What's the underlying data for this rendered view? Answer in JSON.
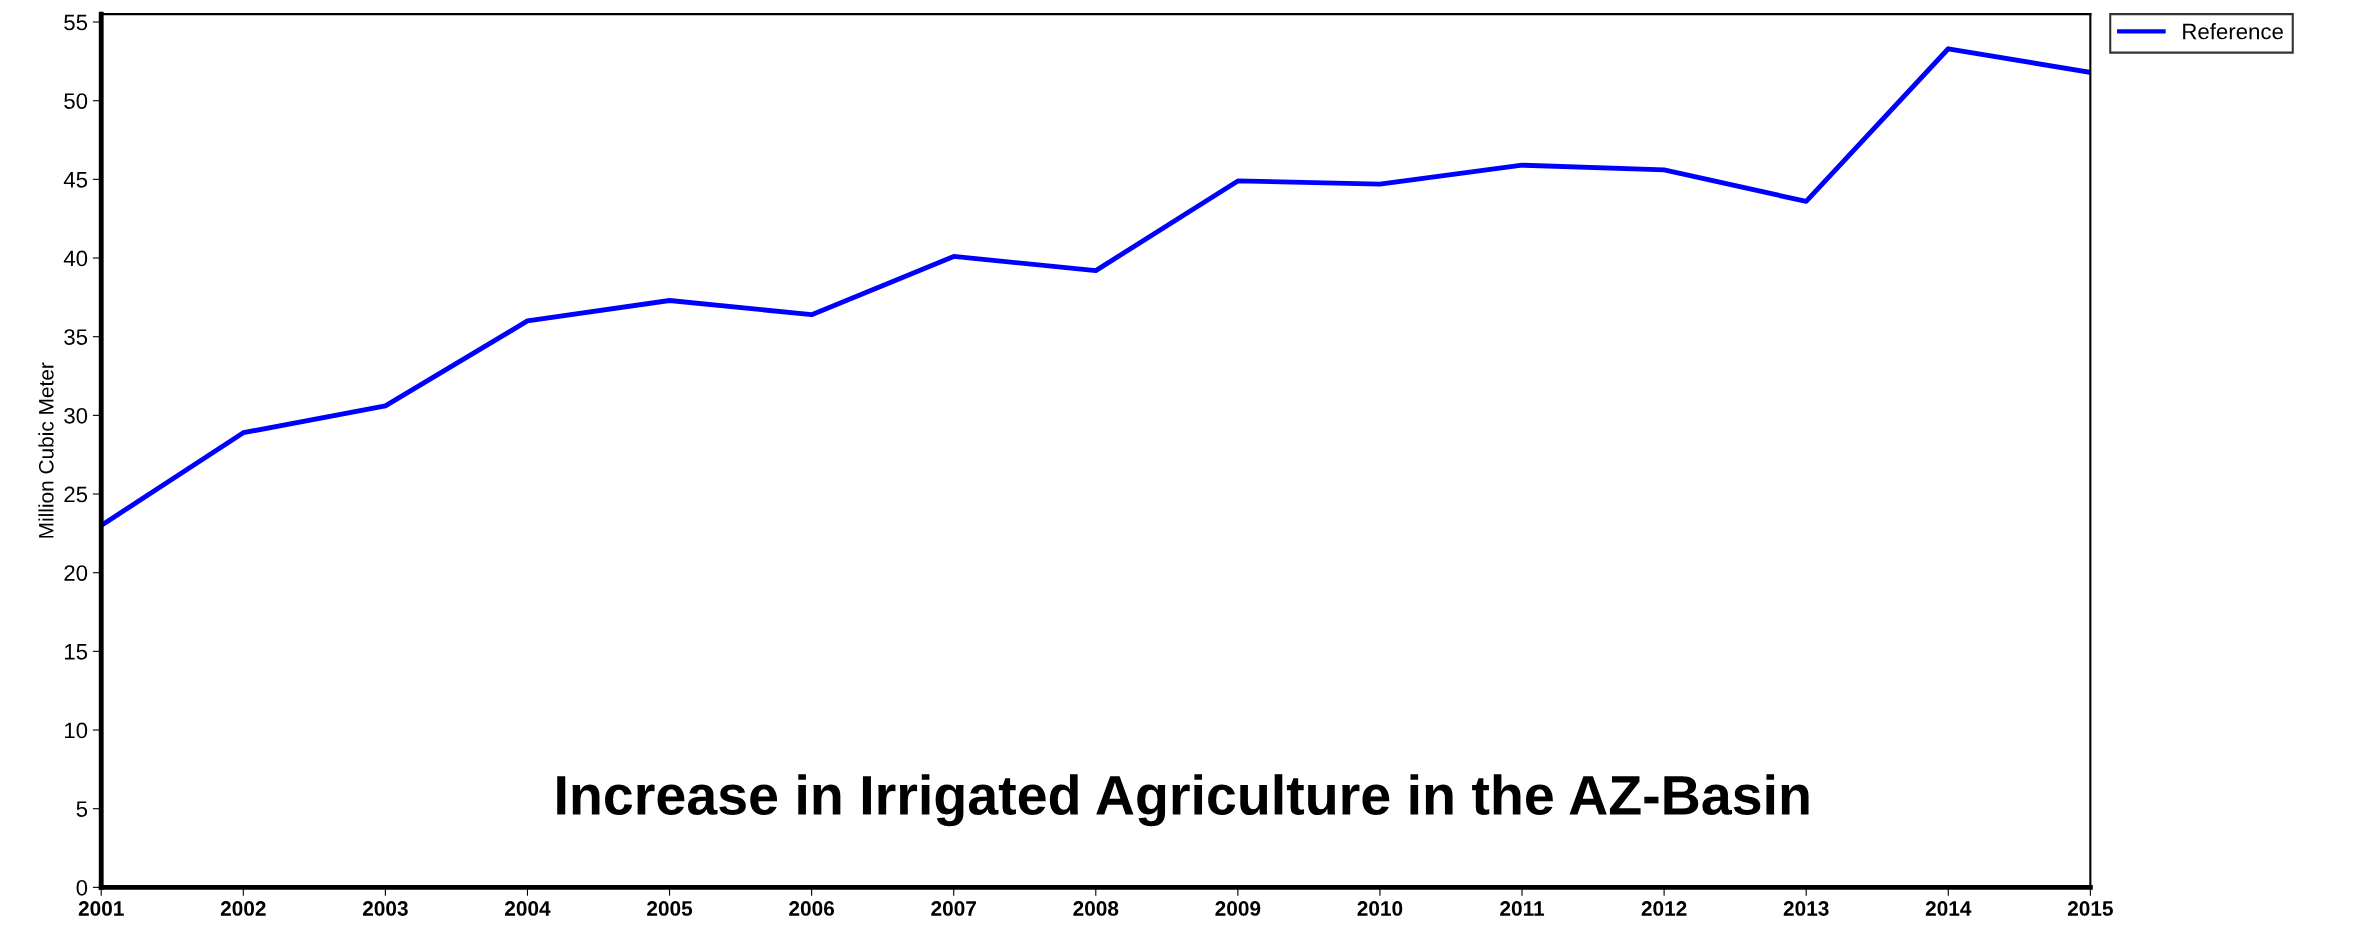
{
  "chart_data": {
    "type": "line",
    "title": "Increase in Irrigated Agriculture in the AZ-Basin",
    "ylabel": "Million Cubic Meter",
    "x": [
      2001,
      2002,
      2003,
      2004,
      2005,
      2006,
      2007,
      2008,
      2009,
      2010,
      2011,
      2012,
      2013,
      2014,
      2015
    ],
    "series": [
      {
        "name": "Reference",
        "color": "#0000ff",
        "values": [
          23.0,
          28.9,
          30.6,
          36.0,
          37.3,
          36.4,
          40.1,
          39.2,
          44.9,
          44.7,
          45.9,
          45.6,
          43.6,
          53.3,
          51.8
        ]
      }
    ],
    "xlim": [
      2001,
      2015
    ],
    "xticks": [
      2001,
      2002,
      2003,
      2004,
      2005,
      2006,
      2007,
      2008,
      2009,
      2010,
      2011,
      2012,
      2013,
      2014,
      2015
    ],
    "ylim": [
      0,
      55.5
    ],
    "yticks": [
      0,
      5,
      10,
      15,
      20,
      25,
      30,
      35,
      40,
      45,
      50,
      55
    ],
    "grid": false,
    "legend": "top right",
    "marker": "none",
    "line_style": "solid"
  }
}
